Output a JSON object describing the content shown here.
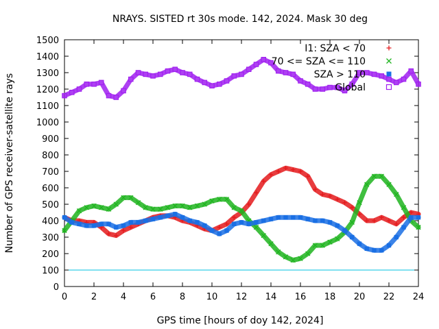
{
  "chart_data": {
    "type": "scatter",
    "title": "NRAYS. SISTED rt 30s mode. 142, 2024. Mask 30 deg",
    "xlabel": "GPS time [hours of doy 142, 2024]",
    "ylabel": "Number of GPS receiver-satellite rays",
    "xlim": [
      0,
      24
    ],
    "ylim": [
      0,
      1500
    ],
    "xticks": [
      0,
      2,
      4,
      6,
      8,
      10,
      12,
      14,
      16,
      18,
      20,
      22,
      24
    ],
    "yticks": [
      0,
      100,
      200,
      300,
      400,
      500,
      600,
      700,
      800,
      900,
      1000,
      1100,
      1200,
      1300,
      1400,
      1500
    ],
    "legend_position": "top-right",
    "reference_line": {
      "y": 100,
      "color": "#00c0e0"
    },
    "series": [
      {
        "name": "I1: SZA < 70",
        "marker": "+",
        "color": "#e41a1c",
        "x": [
          0,
          0.5,
          1,
          1.5,
          2,
          2.5,
          3,
          3.5,
          4,
          4.5,
          5,
          5.5,
          6,
          6.5,
          7,
          7.5,
          8,
          8.5,
          9,
          9.5,
          10,
          10.5,
          11,
          11.5,
          12,
          12.5,
          13,
          13.5,
          14,
          14.5,
          15,
          15.5,
          16,
          16.5,
          17,
          17.5,
          18,
          18.5,
          19,
          19.5,
          20,
          20.5,
          21,
          21.5,
          22,
          22.5,
          23,
          23.5,
          24
        ],
        "y": [
          420,
          400,
          400,
          390,
          390,
          360,
          320,
          310,
          340,
          360,
          380,
          400,
          420,
          430,
          430,
          420,
          400,
          390,
          370,
          350,
          340,
          360,
          380,
          420,
          450,
          500,
          570,
          640,
          680,
          700,
          720,
          710,
          700,
          670,
          590,
          560,
          550,
          530,
          510,
          480,
          440,
          400,
          400,
          420,
          400,
          380,
          420,
          450,
          440
        ]
      },
      {
        "name": "70 <= SZA <= 110",
        "marker": "x",
        "color": "#1fb41f",
        "x": [
          0,
          0.5,
          1,
          1.5,
          2,
          2.5,
          3,
          3.5,
          4,
          4.5,
          5,
          5.5,
          6,
          6.5,
          7,
          7.5,
          8,
          8.5,
          9,
          9.5,
          10,
          10.5,
          11,
          11.5,
          12,
          12.5,
          13,
          13.5,
          14,
          14.5,
          15,
          15.5,
          16,
          16.5,
          17,
          17.5,
          18,
          18.5,
          19,
          19.5,
          20,
          20.5,
          21,
          21.5,
          22,
          22.5,
          23,
          23.5,
          24
        ],
        "y": [
          340,
          400,
          460,
          480,
          490,
          480,
          470,
          500,
          540,
          540,
          510,
          480,
          470,
          470,
          480,
          490,
          490,
          480,
          490,
          500,
          520,
          530,
          530,
          480,
          460,
          400,
          360,
          310,
          260,
          210,
          180,
          160,
          170,
          200,
          250,
          250,
          270,
          290,
          330,
          390,
          510,
          620,
          670,
          670,
          620,
          560,
          480,
          400,
          360
        ]
      },
      {
        "name": "SZA > 110",
        "marker": "square-filled",
        "color": "#1a6fe4",
        "x": [
          0,
          0.5,
          1,
          1.5,
          2,
          2.5,
          3,
          3.5,
          4,
          4.5,
          5,
          5.5,
          6,
          6.5,
          7,
          7.5,
          8,
          8.5,
          9,
          9.5,
          10,
          10.5,
          11,
          11.5,
          12,
          12.5,
          13,
          13.5,
          14,
          14.5,
          15,
          15.5,
          16,
          16.5,
          17,
          17.5,
          18,
          18.5,
          19,
          19.5,
          20,
          20.5,
          21,
          21.5,
          22,
          22.5,
          23,
          23.5,
          24
        ],
        "y": [
          420,
          390,
          380,
          370,
          370,
          380,
          380,
          360,
          370,
          390,
          390,
          400,
          410,
          420,
          430,
          440,
          420,
          400,
          390,
          370,
          340,
          320,
          340,
          380,
          390,
          380,
          390,
          400,
          410,
          420,
          420,
          420,
          420,
          410,
          400,
          400,
          390,
          370,
          340,
          300,
          260,
          230,
          220,
          220,
          250,
          300,
          360,
          420,
          420
        ]
      },
      {
        "name": "Global",
        "marker": "square-open",
        "color": "#a020f0",
        "x": [
          0,
          0.5,
          1,
          1.5,
          2,
          2.5,
          3,
          3.5,
          4,
          4.5,
          5,
          5.5,
          6,
          6.5,
          7,
          7.5,
          8,
          8.5,
          9,
          9.5,
          10,
          10.5,
          11,
          11.5,
          12,
          12.5,
          13,
          13.5,
          14,
          14.5,
          15,
          15.5,
          16,
          16.5,
          17,
          17.5,
          18,
          18.5,
          19,
          19.5,
          20,
          20.5,
          21,
          21.5,
          22,
          22.5,
          23,
          23.5,
          24
        ],
        "y": [
          1160,
          1180,
          1200,
          1230,
          1230,
          1240,
          1160,
          1150,
          1190,
          1260,
          1300,
          1290,
          1280,
          1290,
          1310,
          1320,
          1300,
          1290,
          1260,
          1240,
          1220,
          1230,
          1250,
          1280,
          1290,
          1320,
          1350,
          1380,
          1360,
          1310,
          1300,
          1290,
          1250,
          1230,
          1200,
          1200,
          1210,
          1210,
          1190,
          1230,
          1300,
          1300,
          1290,
          1280,
          1260,
          1240,
          1260,
          1310,
          1230
        ]
      }
    ]
  }
}
